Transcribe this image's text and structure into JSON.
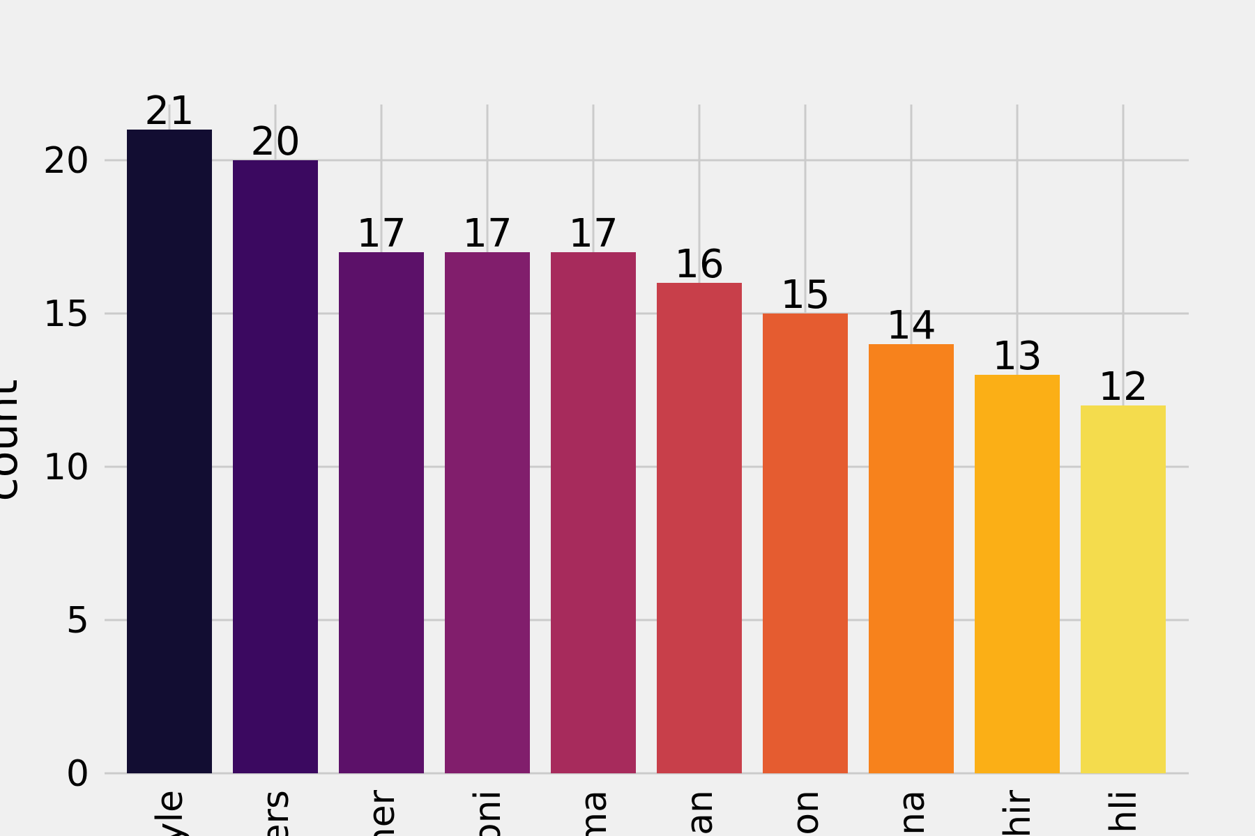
{
  "chart_data": {
    "type": "bar",
    "title": "",
    "xlabel": "",
    "ylabel": "count",
    "categories": [
      "yle",
      "ers",
      "ner",
      "oni",
      "ma",
      "an",
      "on",
      "na",
      "hir",
      "hli"
    ],
    "values": [
      21,
      20,
      17,
      17,
      17,
      16,
      15,
      14,
      13,
      12
    ],
    "data_labels": [
      "21",
      "20",
      "17",
      "17",
      "17",
      "16",
      "15",
      "14",
      "13",
      "12"
    ],
    "colors": [
      "#120d32",
      "#3b0960",
      "#5c1169",
      "#811e6c",
      "#a72b5c",
      "#c83f4a",
      "#e55c30",
      "#f7821c",
      "#fbaf16",
      "#f4dc4d"
    ],
    "ylim": [
      0,
      21.8
    ],
    "yticks": [
      0,
      5,
      10,
      15,
      20
    ],
    "ytick_labels": [
      "0",
      "5",
      "10",
      "15",
      "20"
    ],
    "grid": true,
    "legend": "none"
  }
}
